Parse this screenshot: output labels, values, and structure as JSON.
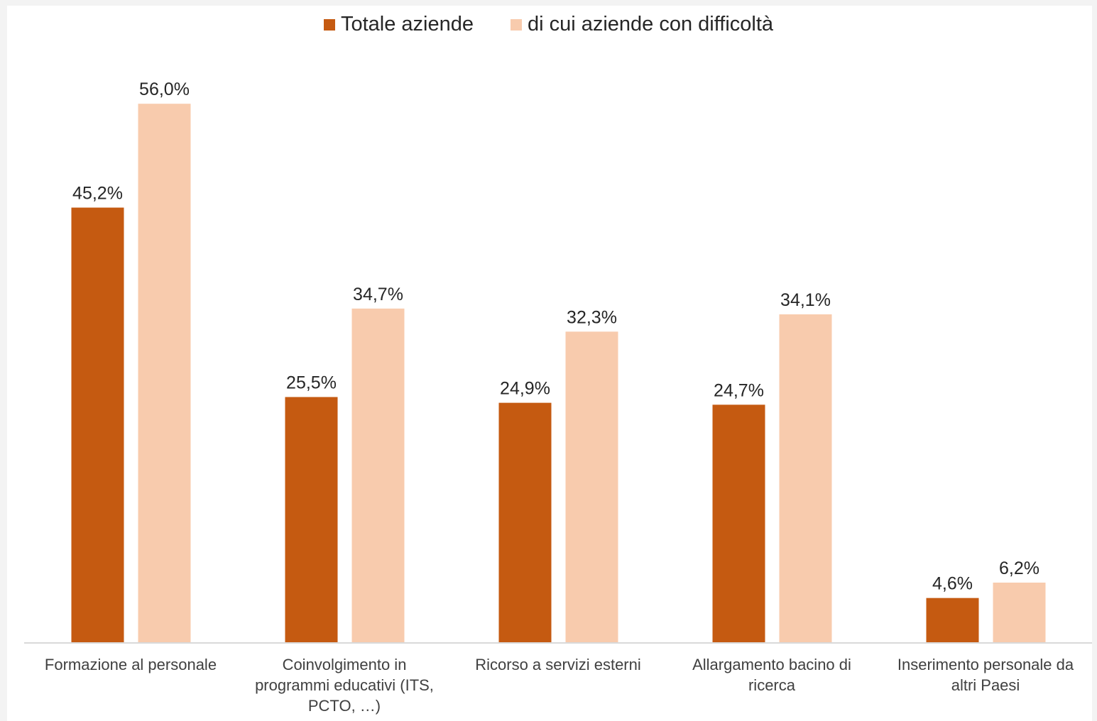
{
  "chart_data": {
    "type": "bar",
    "categories": [
      "Formazione al personale",
      "Coinvolgimento in\nprogrammi educativi (ITS,\nPCTO, …)",
      "Ricorso a servizi esterni",
      "Allargamento bacino di\nricerca",
      "Inserimento personale da\naltri Paesi"
    ],
    "series": [
      {
        "name": "Totale aziende",
        "color": "#c55a11",
        "values": [
          45.2,
          25.5,
          24.9,
          24.7,
          4.6
        ],
        "labels": [
          "45,2%",
          "25,5%",
          "24,9%",
          "24,7%",
          "4,6%"
        ]
      },
      {
        "name": "di cui aziende con difficoltà",
        "color": "#f8cbad",
        "values": [
          56.0,
          34.7,
          32.3,
          34.1,
          6.2
        ],
        "labels": [
          "56,0%",
          "34,7%",
          "32,3%",
          "34,1%",
          "6,2%"
        ]
      }
    ],
    "ylim": [
      0,
      60
    ],
    "grid": false,
    "legend": "top-center",
    "title": "",
    "xlabel": "",
    "ylabel": ""
  }
}
